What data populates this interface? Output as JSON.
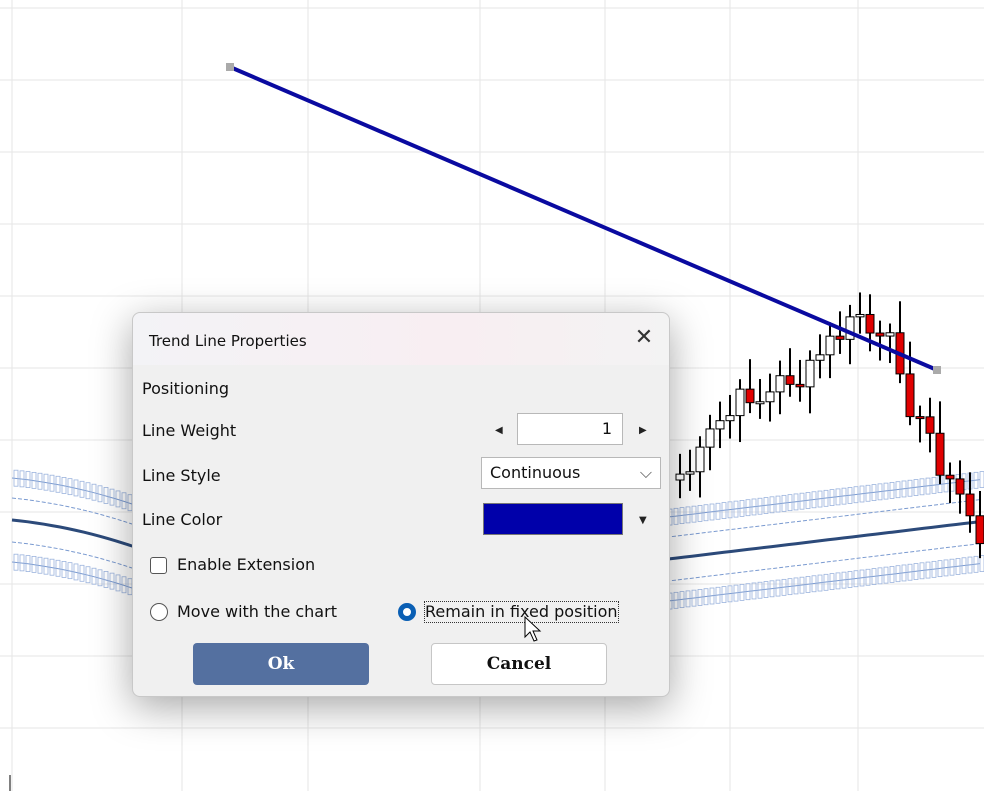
{
  "dialog": {
    "title": "Trend Line Properties",
    "section": "Positioning",
    "fields": [
      {
        "label": "Line Weight",
        "value": 1
      },
      {
        "label": "Line Style",
        "value": "Continuous"
      },
      {
        "label": "Line Color",
        "value": "#0000aa"
      }
    ],
    "checkbox": {
      "label": "Enable Extension",
      "checked": false
    },
    "radios": [
      {
        "label": "Move with the chart",
        "selected": false
      },
      {
        "label": "Remain in fixed position",
        "selected": true
      }
    ],
    "buttons": {
      "ok": "Ok",
      "cancel": "Cancel"
    }
  }
}
